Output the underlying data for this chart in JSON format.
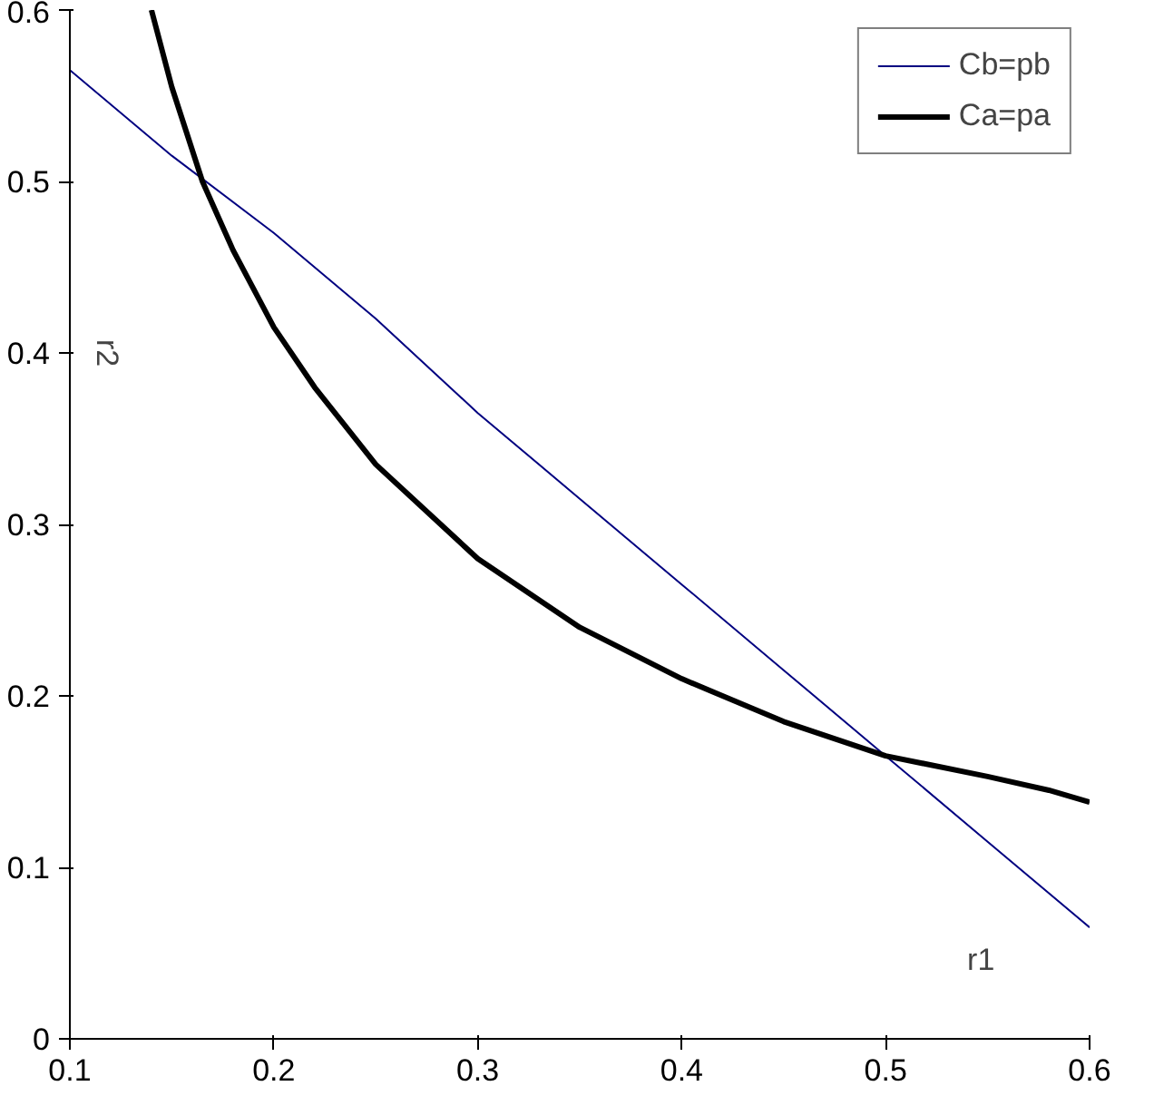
{
  "chart_data": {
    "type": "line",
    "xlabel": "r1",
    "ylabel": "r2",
    "xlim": [
      0.1,
      0.6
    ],
    "ylim": [
      0,
      0.6
    ],
    "xticks": [
      0.1,
      0.2,
      0.3,
      0.4,
      0.5,
      0.6
    ],
    "yticks": [
      0,
      0.1,
      0.2,
      0.3,
      0.4,
      0.5,
      0.6
    ],
    "grid": false,
    "legend": "top right",
    "marker": "none",
    "series": [
      {
        "name": "Cb=pb",
        "color": "#000080",
        "x": [
          0.1,
          0.15,
          0.2,
          0.25,
          0.3,
          0.35,
          0.4,
          0.45,
          0.5,
          0.55,
          0.6
        ],
        "values": [
          0.565,
          0.515,
          0.47,
          0.42,
          0.365,
          0.315,
          0.265,
          0.215,
          0.165,
          0.115,
          0.065
        ]
      },
      {
        "name": "Ca=pa",
        "color": "#000000",
        "x": [
          0.14,
          0.15,
          0.165,
          0.18,
          0.2,
          0.22,
          0.25,
          0.3,
          0.35,
          0.4,
          0.45,
          0.5,
          0.55,
          0.58,
          0.6
        ],
        "values": [
          0.6,
          0.555,
          0.5,
          0.46,
          0.415,
          0.38,
          0.335,
          0.28,
          0.24,
          0.21,
          0.185,
          0.165,
          0.153,
          0.145,
          0.138
        ]
      }
    ]
  }
}
